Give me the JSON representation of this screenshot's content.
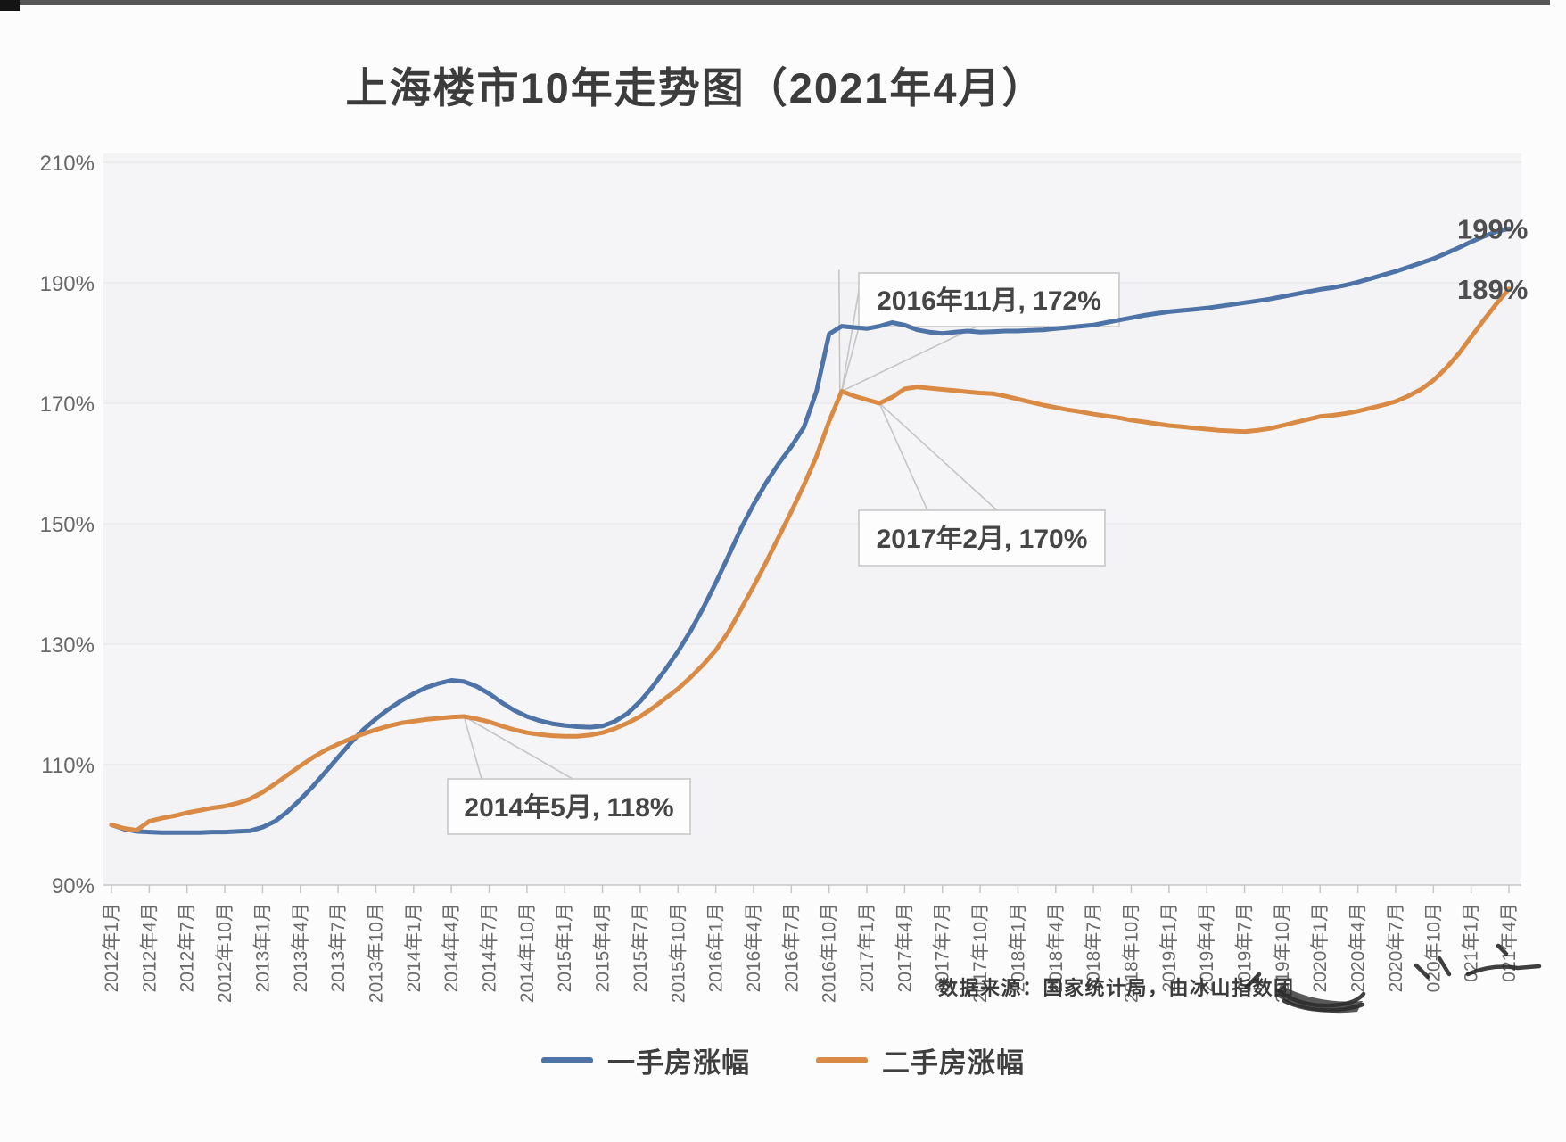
{
  "title": "上海楼市10年走势图（2021年4月）",
  "source_note": "数据来源：国家统计局，由冰山指数团",
  "colors": {
    "new_homes_line": "#4d73a7",
    "second_hand_line": "#d98b45",
    "annotation_border": "#c7c7c7",
    "axis_text": "#68686a",
    "plot_background": "#f4f4f5"
  },
  "chart_data": {
    "type": "line",
    "title": "上海楼市10年走势图（2021年4月）",
    "x_start": "2012年1月",
    "x_end": "2021年4月",
    "x_unit": "month",
    "x_tick_labels": [
      "2012年1月",
      "2012年4月",
      "2012年7月",
      "2012年10月",
      "2013年1月",
      "2013年4月",
      "2013年7月",
      "2013年10月",
      "2014年1月",
      "2014年4月",
      "2014年7月",
      "2014年10月",
      "2015年1月",
      "2015年4月",
      "2015年7月",
      "2015年10月",
      "2016年1月",
      "2016年4月",
      "2016年7月",
      "2016年10月",
      "2017年1月",
      "2017年4月",
      "2017年7月",
      "2017年10月",
      "2018年1月",
      "2018年4月",
      "2018年7月",
      "2018年10月",
      "2019年1月",
      "2019年4月",
      "2019年7月",
      "2019年10月",
      "2020年1月",
      "2020年4月",
      "2020年7月",
      "020年10月",
      "021年1月",
      "021年4月"
    ],
    "y_ticks": [
      90,
      110,
      130,
      150,
      170,
      190,
      210
    ],
    "y_tick_labels": [
      "90%",
      "110%",
      "130%",
      "150%",
      "170%",
      "190%",
      "210%"
    ],
    "ylim": [
      90,
      210
    ],
    "grid": true,
    "legend_position": "bottom-center",
    "series": [
      {
        "name": "一手房涨幅",
        "color": "#4d73a7",
        "end_label": "199%",
        "monthly_values": [
          100.0,
          99.3,
          98.9,
          98.8,
          98.7,
          98.7,
          98.7,
          98.7,
          98.8,
          98.8,
          98.9,
          99.0,
          99.6,
          100.6,
          102.2,
          104.2,
          106.4,
          108.8,
          111.2,
          113.6,
          115.8,
          117.6,
          119.2,
          120.6,
          121.8,
          122.8,
          123.5,
          124.0,
          123.8,
          123.0,
          121.8,
          120.3,
          119.0,
          118.0,
          117.3,
          116.8,
          116.5,
          116.3,
          116.2,
          116.4,
          117.2,
          118.5,
          120.5,
          123.0,
          125.8,
          128.8,
          132.2,
          136.0,
          140.2,
          144.6,
          149.2,
          153.2,
          156.8,
          160.0,
          162.8,
          166.0,
          172.0,
          181.5,
          182.8,
          182.6,
          182.4,
          182.8,
          183.4,
          183.0,
          182.2,
          181.8,
          181.6,
          181.8,
          182.0,
          181.8,
          181.9,
          182.0,
          182.0,
          182.1,
          182.2,
          182.4,
          182.6,
          182.8,
          183.0,
          183.4,
          183.8,
          184.2,
          184.6,
          184.9,
          185.2,
          185.4,
          185.6,
          185.8,
          186.1,
          186.4,
          186.7,
          187.0,
          187.3,
          187.7,
          188.1,
          188.5,
          188.9,
          189.2,
          189.6,
          190.1,
          190.7,
          191.3,
          191.9,
          192.6,
          193.3,
          194.0,
          194.9,
          195.8,
          196.8,
          197.7,
          198.5,
          199.0
        ]
      },
      {
        "name": "二手房涨幅",
        "color": "#d98b45",
        "end_label": "189%",
        "monthly_values": [
          100.0,
          99.4,
          99.1,
          100.6,
          101.1,
          101.5,
          102.0,
          102.4,
          102.8,
          103.1,
          103.6,
          104.3,
          105.4,
          106.8,
          108.3,
          109.8,
          111.2,
          112.4,
          113.4,
          114.3,
          115.1,
          115.8,
          116.4,
          116.9,
          117.2,
          117.5,
          117.7,
          117.9,
          118.0,
          117.6,
          117.1,
          116.4,
          115.8,
          115.3,
          115.0,
          114.8,
          114.7,
          114.7,
          114.9,
          115.3,
          116.0,
          116.9,
          118.0,
          119.4,
          121.0,
          122.6,
          124.5,
          126.6,
          129.0,
          132.0,
          135.8,
          139.6,
          143.6,
          147.8,
          152.0,
          156.4,
          161.2,
          167.0,
          172.0,
          171.2,
          170.6,
          170.0,
          171.0,
          172.4,
          172.7,
          172.5,
          172.3,
          172.1,
          171.9,
          171.7,
          171.6,
          171.2,
          170.7,
          170.2,
          169.7,
          169.3,
          168.9,
          168.6,
          168.2,
          167.9,
          167.6,
          167.2,
          166.9,
          166.6,
          166.3,
          166.1,
          165.9,
          165.7,
          165.5,
          165.4,
          165.3,
          165.5,
          165.8,
          166.3,
          166.8,
          167.3,
          167.8,
          168.0,
          168.3,
          168.7,
          169.2,
          169.7,
          170.3,
          171.2,
          172.3,
          173.8,
          175.8,
          178.2,
          181.0,
          183.8,
          186.5,
          189.0
        ]
      }
    ],
    "annotations": [
      {
        "text": "2016年11月, 172%",
        "series": "二手房涨幅",
        "month_index": 58,
        "value": 172
      },
      {
        "text": "2017年2月, 170%",
        "series": "二手房涨幅",
        "month_index": 61,
        "value": 170
      },
      {
        "text": "2014年5月, 118%",
        "series": "二手房涨幅",
        "month_index": 28,
        "value": 118
      }
    ]
  }
}
